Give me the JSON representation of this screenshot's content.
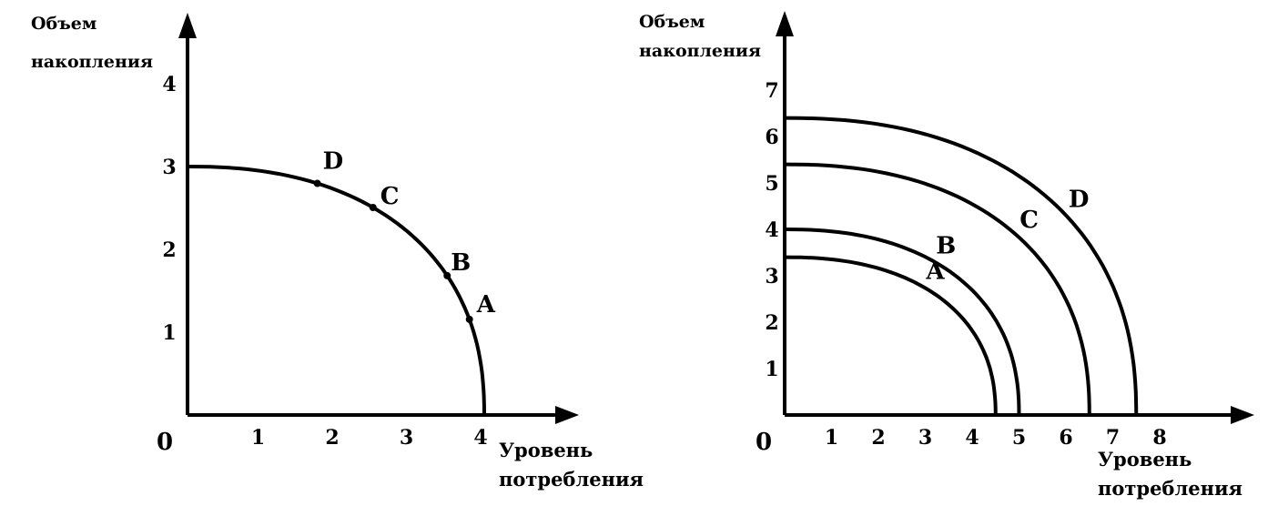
{
  "chart_data": [
    {
      "type": "line",
      "ylabel": [
        "Объем",
        "накопления"
      ],
      "xlabel": [
        "Уровень",
        "потребления"
      ],
      "origin_label": "0",
      "xticks": [
        "1",
        "2",
        "3",
        "4"
      ],
      "yticks": [
        "1",
        "2",
        "3",
        "4"
      ],
      "xlim": [
        0,
        5.1
      ],
      "ylim": [
        0,
        5.1
      ],
      "series": [
        {
          "x": [
            0,
            1,
            2,
            2.7,
            3.5,
            3.8,
            4
          ],
          "y": [
            3,
            2.8,
            2.25,
            1.85,
            1.2,
            0.7,
            0
          ]
        }
      ],
      "points": [
        {
          "label": "D",
          "x": 1.75,
          "y": 2.5
        },
        {
          "label": "C",
          "x": 2.5,
          "y": 2.0
        },
        {
          "label": "B",
          "x": 3.5,
          "y": 1.2
        },
        {
          "label": "A",
          "x": 3.8,
          "y": 0.7
        }
      ]
    },
    {
      "type": "line",
      "ylabel": [
        "Объем",
        "накопления"
      ],
      "xlabel": [
        "Уровень",
        "потребления"
      ],
      "origin_label": "0",
      "xticks": [
        "1",
        "2",
        "3",
        "4",
        "5",
        "6",
        "7",
        "8"
      ],
      "yticks": [
        "1",
        "2",
        "3",
        "4",
        "5",
        "6",
        "7"
      ],
      "xlim": [
        0,
        9.5
      ],
      "ylim": [
        0,
        8.4
      ],
      "series": [
        {
          "name": "A",
          "x0": 4.5,
          "y0": 3.4
        },
        {
          "name": "B",
          "x0": 5,
          "y0": 4
        },
        {
          "name": "C",
          "x0": 6.5,
          "y0": 5.4
        },
        {
          "name": "D",
          "x0": 7.5,
          "y0": 6.4
        }
      ],
      "curve_labels": [
        "A",
        "B",
        "C",
        "D"
      ]
    }
  ]
}
